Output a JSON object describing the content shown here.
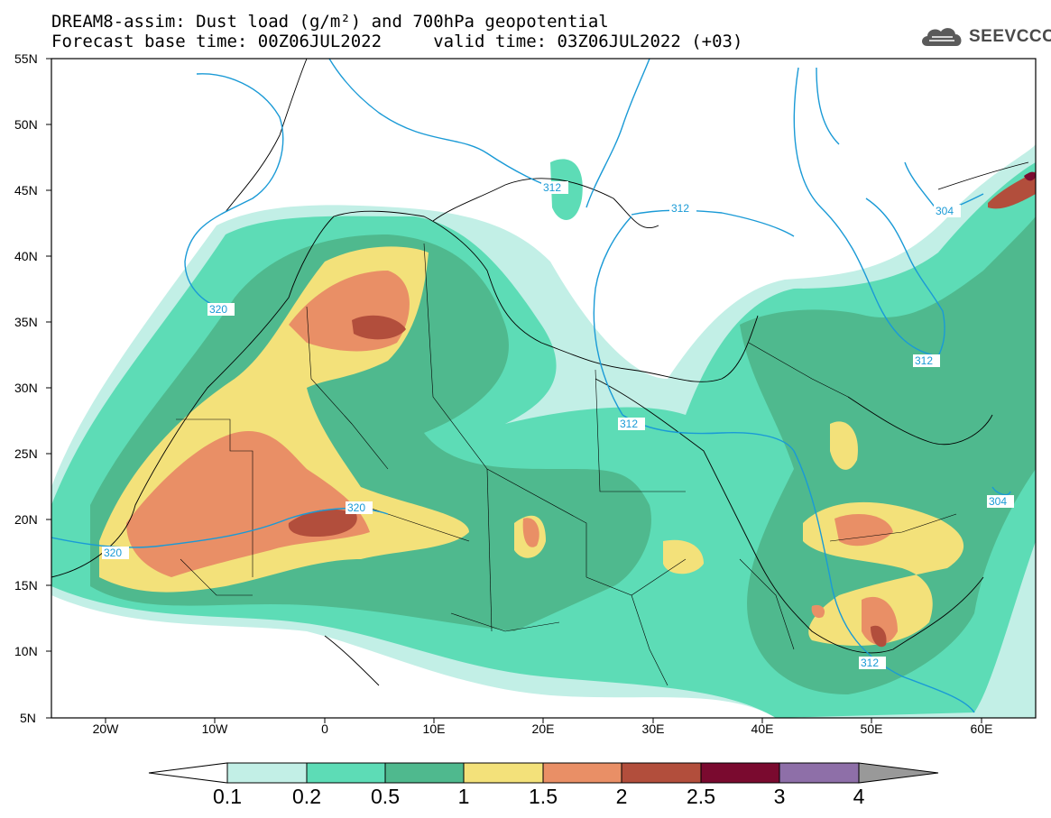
{
  "title": {
    "line1": "DREAM8-assim: Dust load (g/m²) and 700hPa geopotential",
    "line2": "Forecast base time: 00Z06JUL2022     valid time: 03Z06JUL2022 (+03)"
  },
  "logo": {
    "text": "SEEVCCC",
    "icon": "cloud-icon"
  },
  "axes": {
    "lat_labels": [
      "55N",
      "50N",
      "45N",
      "40N",
      "35N",
      "30N",
      "25N",
      "20N",
      "15N",
      "10N",
      "5N"
    ],
    "lon_labels": [
      "20W",
      "10W",
      "0",
      "10E",
      "20E",
      "30E",
      "40E",
      "50E",
      "60E"
    ]
  },
  "contours": {
    "color": "#1a9ad6",
    "labels": [
      "320",
      "312",
      "312",
      "320",
      "320",
      "312",
      "312",
      "304",
      "304",
      "312"
    ]
  },
  "colorbar": {
    "labels": [
      "0.1",
      "0.2",
      "0.5",
      "1",
      "1.5",
      "2",
      "2.5",
      "3",
      "4"
    ],
    "colors": [
      "#ffffff",
      "#c2efe6",
      "#5ddcb6",
      "#4fb98e",
      "#f3e17a",
      "#e98f66",
      "#b24e3c",
      "#7a0a2f",
      "#8e6fa8",
      "#999999"
    ]
  }
}
